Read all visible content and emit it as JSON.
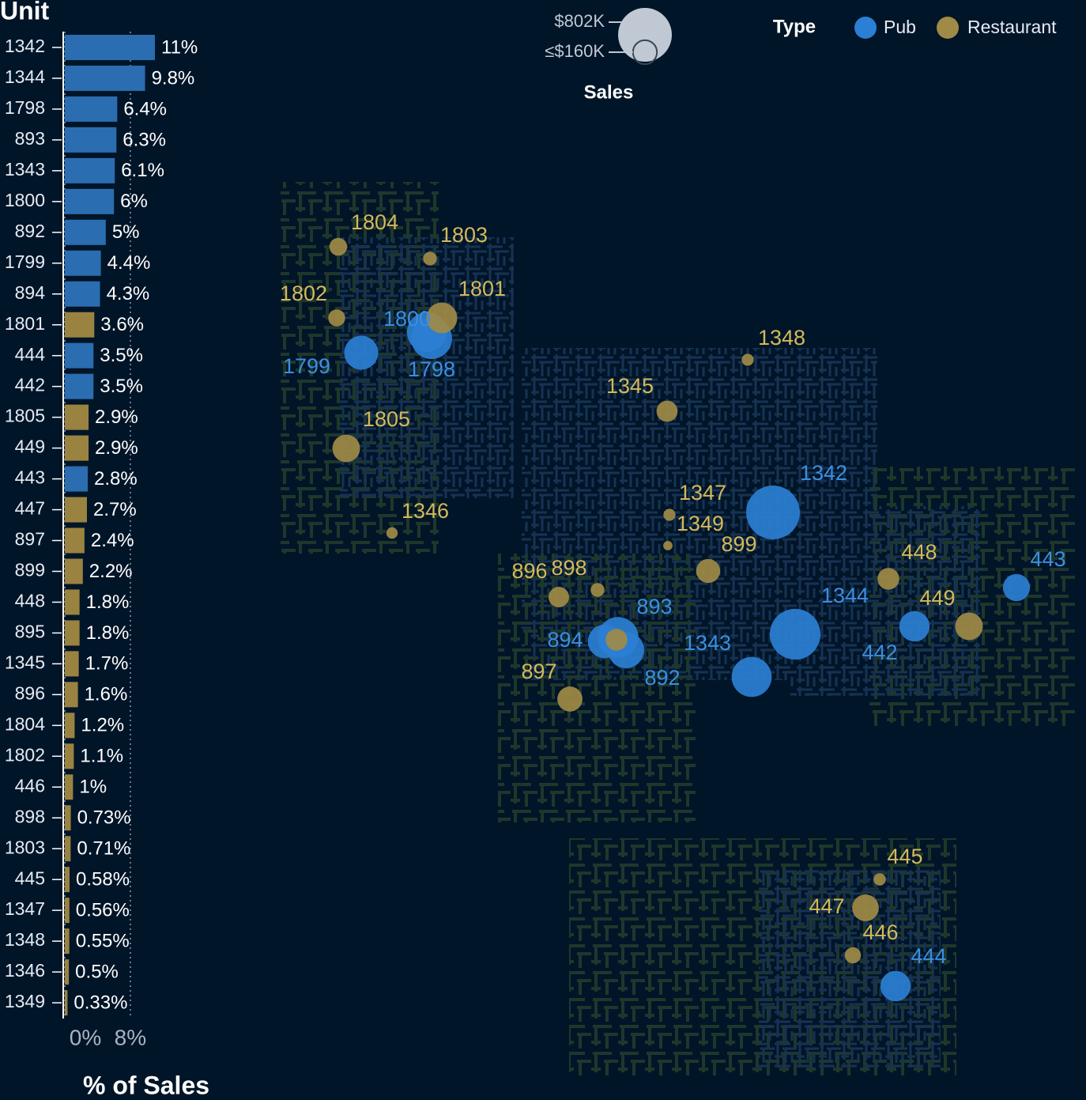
{
  "chart_data": [
    {
      "type": "bar",
      "orientation": "horizontal",
      "y_label": "Unit",
      "x_label": "% of Sales",
      "categories": [
        "1342",
        "1344",
        "1798",
        "893",
        "1343",
        "1800",
        "892",
        "1799",
        "894",
        "1801",
        "444",
        "442",
        "1805",
        "449",
        "443",
        "447",
        "897",
        "899",
        "448",
        "895",
        "1345",
        "896",
        "1804",
        "1802",
        "446",
        "898",
        "1803",
        "445",
        "1347",
        "1348",
        "1346",
        "1349"
      ],
      "values": [
        11,
        9.8,
        6.4,
        6.3,
        6.1,
        6,
        5,
        4.4,
        4.3,
        3.6,
        3.5,
        3.5,
        2.9,
        2.9,
        2.8,
        2.7,
        2.4,
        2.2,
        1.8,
        1.8,
        1.7,
        1.6,
        1.2,
        1.1,
        1,
        0.73,
        0.71,
        0.58,
        0.56,
        0.55,
        0.5,
        0.33
      ],
      "value_labels": [
        "11%",
        "9.8%",
        "6.4%",
        "6.3%",
        "6.1%",
        "6%",
        "5%",
        "4.4%",
        "4.3%",
        "3.6%",
        "3.5%",
        "3.5%",
        "2.9%",
        "2.9%",
        "2.8%",
        "2.7%",
        "2.4%",
        "2.2%",
        "1.8%",
        "1.8%",
        "1.7%",
        "1.6%",
        "1.2%",
        "1.1%",
        "1%",
        "0.73%",
        "0.71%",
        "0.58%",
        "0.56%",
        "0.55%",
        "0.5%",
        "0.33%"
      ],
      "colors": [
        "#2a6db0",
        "#2a6db0",
        "#2a6db0",
        "#2a6db0",
        "#2a6db0",
        "#2a6db0",
        "#2a6db0",
        "#2a6db0",
        "#2a6db0",
        "#9a8340",
        "#2a6db0",
        "#2a6db0",
        "#9a8340",
        "#9a8340",
        "#2a6db0",
        "#9a8340",
        "#9a8340",
        "#9a8340",
        "#9a8340",
        "#9a8340",
        "#9a8340",
        "#9a8340",
        "#9a8340",
        "#9a8340",
        "#9a8340",
        "#9a8340",
        "#9a8340",
        "#9a8340",
        "#9a8340",
        "#9a8340",
        "#9a8340",
        "#9a8340"
      ],
      "xlim": [
        0,
        11
      ],
      "xticks": [
        {
          "value": 0,
          "label": "0%"
        },
        {
          "value": 8,
          "label": "8%"
        }
      ],
      "grid": "dotted"
    },
    {
      "type": "bubble-map",
      "legend_title": "Type",
      "size_legend_title": "Sales",
      "size_legend": [
        {
          "value": 802000,
          "label": "$802K"
        },
        {
          "value": 160000,
          "label": "≤$160K"
        }
      ],
      "series": [
        {
          "name": "Pub",
          "color": "#2b7fd4",
          "label_color": "#3a8fe0",
          "labels": [
            "1342",
            "1344",
            "1798",
            "893",
            "1343",
            "1800",
            "892",
            "1799",
            "894",
            "444",
            "442",
            "443"
          ],
          "sizes": [
            802000,
            715000,
            467000,
            460000,
            445000,
            438000,
            365000,
            321000,
            314000,
            255000,
            255000,
            204000
          ]
        },
        {
          "name": "Restaurant",
          "color": "#a08a45",
          "label_color": "#d4b95a",
          "labels": [
            "1801",
            "1805",
            "449",
            "447",
            "897",
            "899",
            "448",
            null,
            "1345",
            "896",
            "1804",
            "1802",
            "446",
            "898",
            "1803",
            "445",
            "1347",
            "1348",
            "1346",
            "1349"
          ],
          "sizes": [
            263000,
            212000,
            212000,
            197000,
            175000,
            160000,
            131000,
            131000,
            124000,
            117000,
            88000,
            80000,
            73000,
            53000,
            52000,
            42000,
            41000,
            40000,
            36000,
            24000
          ]
        }
      ]
    }
  ]
}
